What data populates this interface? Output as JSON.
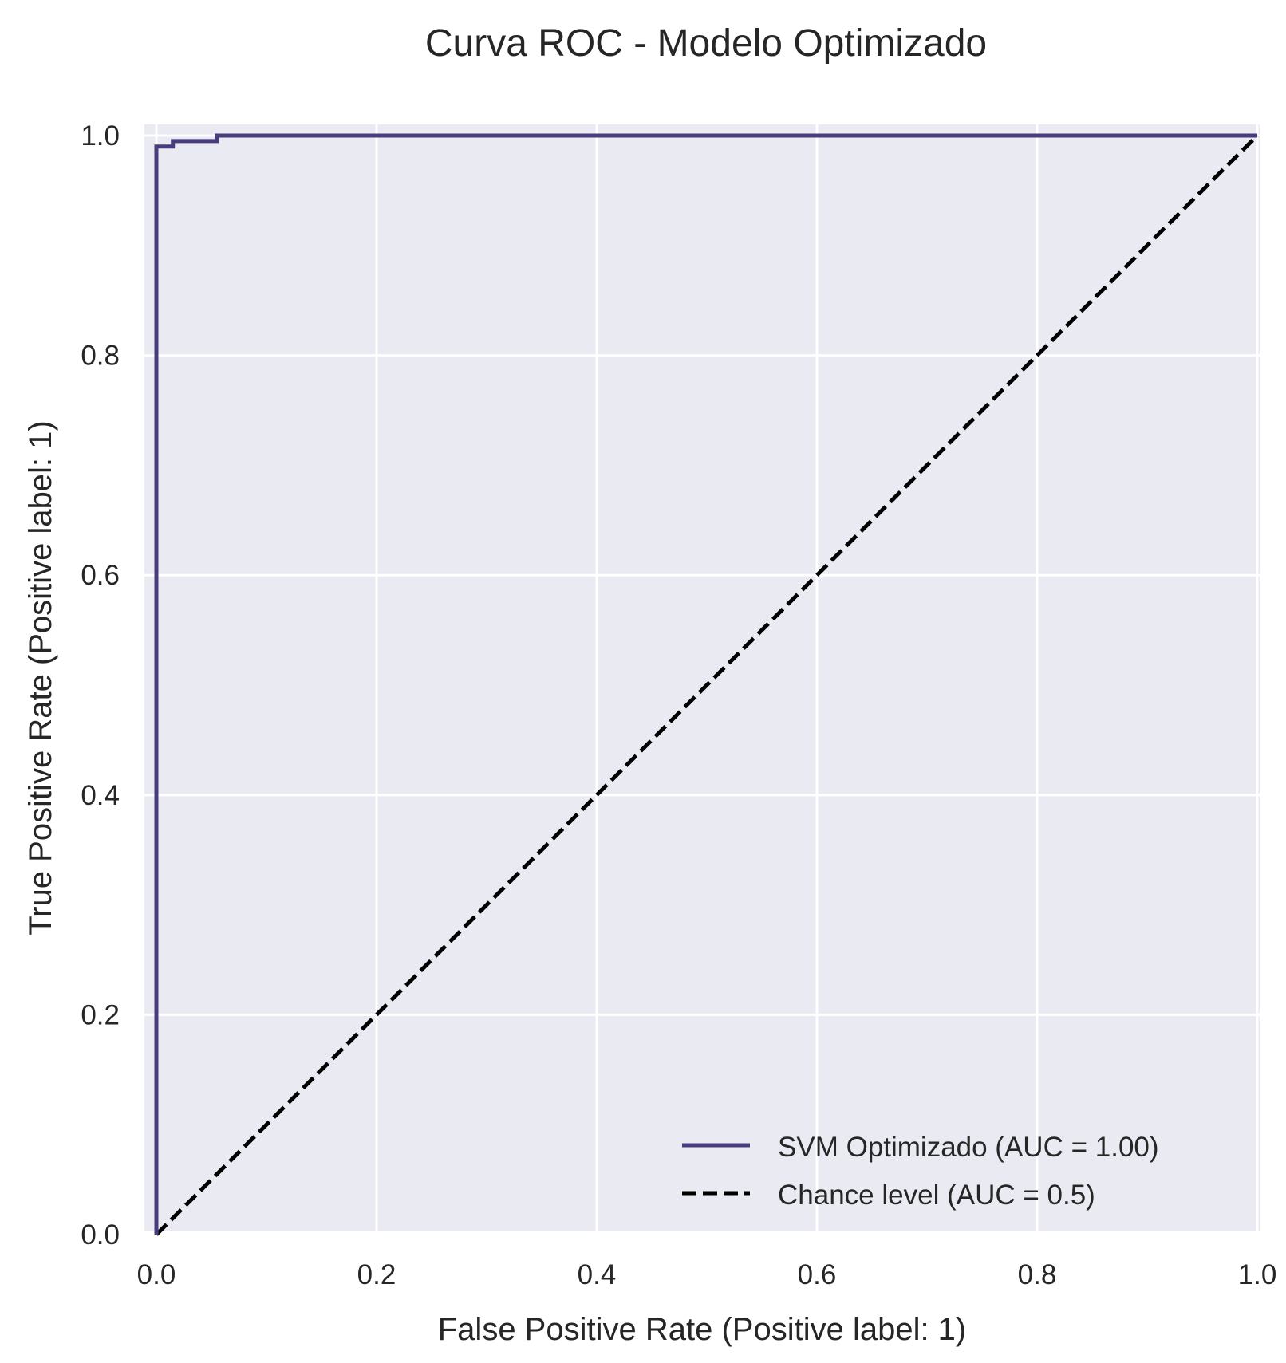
{
  "chart_data": {
    "type": "line",
    "title": "Curva ROC - Modelo Optimizado",
    "xlabel": "False Positive Rate (Positive label: 1)",
    "ylabel": "True Positive Rate (Positive label: 1)",
    "xlim": [
      0.0,
      1.0
    ],
    "ylim": [
      0.0,
      1.0
    ],
    "xticks": [
      "0.0",
      "0.2",
      "0.4",
      "0.6",
      "0.8",
      "1.0"
    ],
    "yticks": [
      "0.0",
      "0.2",
      "0.4",
      "0.6",
      "0.8",
      "1.0"
    ],
    "grid": true,
    "legend_position": "lower-right",
    "background_color": "#eaeaf2",
    "series": [
      {
        "name": "SVM Optimizado (AUC = 1.00)",
        "color": "#483c7e",
        "style": "solid",
        "x": [
          0.0,
          0.0,
          0.015,
          0.015,
          0.055,
          0.055,
          1.0
        ],
        "y": [
          0.0,
          0.99,
          0.99,
          0.995,
          0.995,
          1.0,
          1.0
        ]
      },
      {
        "name": "Chance level (AUC = 0.5)",
        "color": "#000000",
        "style": "dashed",
        "x": [
          0.0,
          1.0
        ],
        "y": [
          0.0,
          1.0
        ]
      }
    ]
  }
}
